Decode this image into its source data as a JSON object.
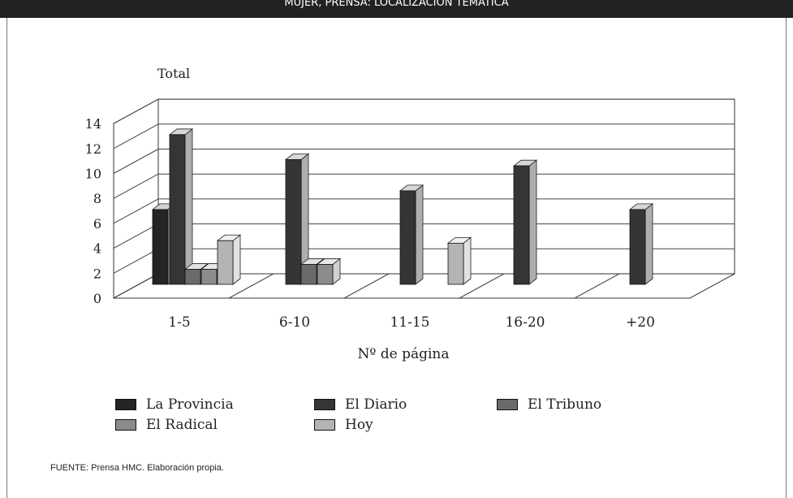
{
  "header": {
    "title": "MUJER, PRENSA: LOCALIZACIÓN TEMÁTICA"
  },
  "source_note": "FUENTE: Prensa HMC. Elaboración propia.",
  "chart_data": {
    "type": "bar",
    "title": "",
    "xlabel": "Nº de página",
    "ylabel": "Total",
    "ylim": [
      0,
      14
    ],
    "yticks": [
      "0",
      "2",
      "4",
      "6",
      "8",
      "10",
      "12",
      "14"
    ],
    "categories": [
      "1-5",
      "6-10",
      "11-15",
      "16-20",
      "+20"
    ],
    "series": [
      {
        "name": "La Provincia",
        "color": "#242424",
        "values": [
          6,
          0,
          0,
          0,
          0
        ]
      },
      {
        "name": "El Diario",
        "color": "#353535",
        "values": [
          12,
          10,
          7.5,
          9.5,
          6
        ]
      },
      {
        "name": "El Tribuno",
        "color": "#6a6a6a",
        "values": [
          1.2,
          1.6,
          0,
          0,
          0
        ]
      },
      {
        "name": "El Radical",
        "color": "#8c8c8c",
        "values": [
          1.2,
          1.6,
          0,
          0,
          0
        ]
      },
      {
        "name": "Hoy",
        "color": "#b4b4b4",
        "values": [
          3.5,
          0,
          3.3,
          0,
          0
        ]
      }
    ],
    "grid": true,
    "legend": "bottom"
  }
}
